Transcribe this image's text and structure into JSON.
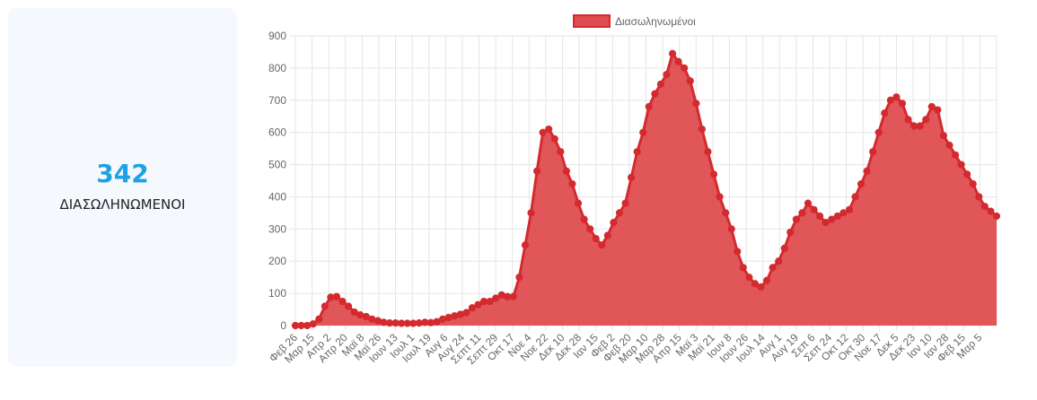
{
  "stat": {
    "value": "342",
    "label": "ΔΙΑΣΩΛΗΝΩΜΕΝΟΙ"
  },
  "colors": {
    "accent": "#1ea1e6",
    "series_line": "#d42a2f",
    "series_fill": "#de4d50",
    "card_bg": "#f5f9fe"
  },
  "chart_data": {
    "type": "area",
    "legend_position": "top",
    "grid": true,
    "ylim": [
      0,
      900
    ],
    "yticks": [
      0,
      100,
      200,
      300,
      400,
      500,
      600,
      700,
      800,
      900
    ],
    "x_tick_labels": [
      "Φεβ 26",
      "Μαρ 15",
      "Απρ 2",
      "Απρ 20",
      "Μαϊ 8",
      "Μαϊ 26",
      "Ιουν 13",
      "Ιουλ 1",
      "Ιουλ 19",
      "Αυγ 6",
      "Αυγ 24",
      "Σεπτ 11",
      "Σεπτ 29",
      "Οκτ 17",
      "Νοε 4",
      "Νοε 22",
      "Δεκ 10",
      "Δεκ 28",
      "Ιαν 15",
      "Φεβ 2",
      "Φεβ 20",
      "Μαρ 10",
      "Μαρ 28",
      "Απρ 15",
      "Μαϊ 3",
      "Μαϊ 21",
      "Ιουν 8",
      "Ιουν 26",
      "Ιουλ 14",
      "Αυγ 1",
      "Αυγ 19",
      "Σεπ 6",
      "Σεπ 24",
      "Οκτ 12",
      "Οκτ 30",
      "Νοε 17",
      "Δεκ 5",
      "Δεκ 23",
      "Ιαν 10",
      "Ιαν 28",
      "Φεβ 15",
      "Μαρ 5"
    ],
    "series": [
      {
        "name": "Διασωληνωμένοι",
        "values": [
          0,
          0,
          0,
          5,
          20,
          60,
          88,
          90,
          75,
          60,
          42,
          33,
          28,
          20,
          15,
          10,
          8,
          8,
          7,
          7,
          7,
          8,
          10,
          9,
          12,
          20,
          25,
          30,
          35,
          40,
          55,
          65,
          75,
          75,
          85,
          95,
          90,
          90,
          150,
          250,
          350,
          480,
          600,
          610,
          580,
          540,
          480,
          440,
          380,
          330,
          300,
          270,
          250,
          280,
          320,
          350,
          380,
          460,
          540,
          600,
          680,
          720,
          750,
          780,
          845,
          820,
          800,
          760,
          690,
          610,
          540,
          470,
          400,
          350,
          300,
          230,
          180,
          150,
          130,
          120,
          140,
          180,
          200,
          240,
          290,
          330,
          350,
          380,
          360,
          340,
          320,
          330,
          340,
          350,
          360,
          400,
          440,
          480,
          540,
          600,
          660,
          700,
          710,
          690,
          640,
          620,
          620,
          640,
          680,
          670,
          590,
          560,
          530,
          500,
          470,
          440,
          400,
          370,
          355,
          340
        ]
      }
    ]
  }
}
